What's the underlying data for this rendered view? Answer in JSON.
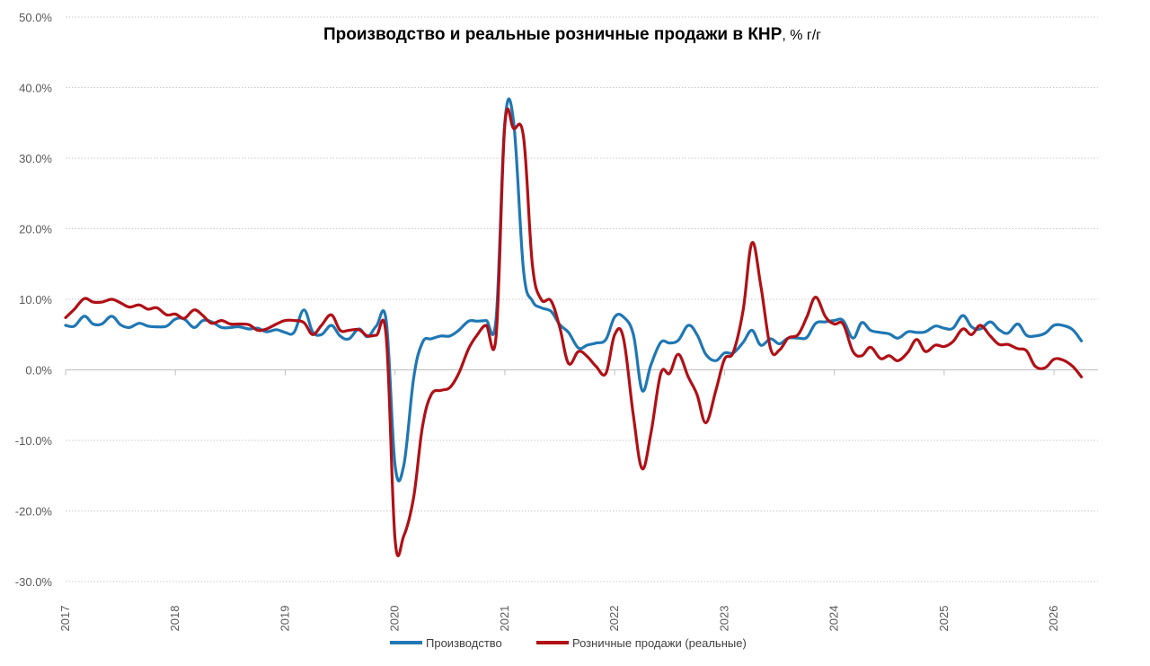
{
  "chart_data": {
    "type": "line",
    "title": "Производство и реальные розничные продажи в КНР",
    "title_unit": ", % г/г",
    "xlabel": "",
    "ylabel": "",
    "ylim": [
      -30,
      50
    ],
    "xlim": [
      2017.0,
      2026.4
    ],
    "y_ticks": [
      50,
      40,
      30,
      20,
      10,
      0,
      -10,
      -20,
      -30
    ],
    "y_tick_labels": [
      "50.0%",
      "40.0%",
      "30.0%",
      "20.0%",
      "10.0%",
      "0.0%",
      "-10.0%",
      "-20.0%",
      "-30.0%"
    ],
    "x_ticks": [
      2017,
      2018,
      2019,
      2020,
      2021,
      2022,
      2023,
      2024,
      2025,
      2026
    ],
    "x_tick_labels": [
      "2017",
      "2018",
      "2019",
      "2020",
      "2021",
      "2022",
      "2023",
      "2024",
      "2025",
      "2026"
    ],
    "grid": "horizontal dotted",
    "legend_position": "bottom",
    "series": [
      {
        "name": "Производство",
        "color": "#1f77b4",
        "points": [
          [
            2017.0,
            6.3
          ],
          [
            2017.08,
            6.2
          ],
          [
            2017.17,
            7.6
          ],
          [
            2017.25,
            6.5
          ],
          [
            2017.33,
            6.5
          ],
          [
            2017.42,
            7.6
          ],
          [
            2017.5,
            6.4
          ],
          [
            2017.58,
            6.0
          ],
          [
            2017.67,
            6.6
          ],
          [
            2017.75,
            6.2
          ],
          [
            2017.83,
            6.1
          ],
          [
            2017.92,
            6.2
          ],
          [
            2018.0,
            7.2
          ],
          [
            2018.08,
            7.2
          ],
          [
            2018.17,
            6.0
          ],
          [
            2018.25,
            7.0
          ],
          [
            2018.33,
            6.8
          ],
          [
            2018.42,
            6.0
          ],
          [
            2018.5,
            6.0
          ],
          [
            2018.58,
            6.1
          ],
          [
            2018.67,
            5.8
          ],
          [
            2018.75,
            5.9
          ],
          [
            2018.83,
            5.4
          ],
          [
            2018.92,
            5.7
          ],
          [
            2019.0,
            5.3
          ],
          [
            2019.08,
            5.3
          ],
          [
            2019.17,
            8.5
          ],
          [
            2019.25,
            5.4
          ],
          [
            2019.33,
            5.0
          ],
          [
            2019.42,
            6.3
          ],
          [
            2019.5,
            4.8
          ],
          [
            2019.58,
            4.4
          ],
          [
            2019.67,
            5.8
          ],
          [
            2019.75,
            4.7
          ],
          [
            2019.83,
            6.2
          ],
          [
            2019.92,
            6.9
          ],
          [
            2020.0,
            -13.5
          ],
          [
            2020.08,
            -13.5
          ],
          [
            2020.17,
            -1.1
          ],
          [
            2020.25,
            3.9
          ],
          [
            2020.33,
            4.4
          ],
          [
            2020.42,
            4.8
          ],
          [
            2020.5,
            4.8
          ],
          [
            2020.58,
            5.6
          ],
          [
            2020.67,
            6.9
          ],
          [
            2020.75,
            6.9
          ],
          [
            2020.83,
            7.0
          ],
          [
            2020.92,
            7.3
          ],
          [
            2021.0,
            35.1
          ],
          [
            2021.08,
            35.1
          ],
          [
            2021.17,
            14.1
          ],
          [
            2021.25,
            9.8
          ],
          [
            2021.33,
            8.8
          ],
          [
            2021.42,
            8.3
          ],
          [
            2021.5,
            6.4
          ],
          [
            2021.58,
            5.3
          ],
          [
            2021.67,
            3.1
          ],
          [
            2021.75,
            3.5
          ],
          [
            2021.83,
            3.8
          ],
          [
            2021.92,
            4.3
          ],
          [
            2022.0,
            7.5
          ],
          [
            2022.08,
            7.5
          ],
          [
            2022.17,
            5.0
          ],
          [
            2022.25,
            -2.9
          ],
          [
            2022.33,
            0.7
          ],
          [
            2022.42,
            3.9
          ],
          [
            2022.5,
            3.8
          ],
          [
            2022.58,
            4.2
          ],
          [
            2022.67,
            6.3
          ],
          [
            2022.75,
            5.0
          ],
          [
            2022.83,
            2.2
          ],
          [
            2022.92,
            1.3
          ],
          [
            2023.0,
            2.4
          ],
          [
            2023.08,
            2.4
          ],
          [
            2023.17,
            3.9
          ],
          [
            2023.25,
            5.6
          ],
          [
            2023.33,
            3.5
          ],
          [
            2023.42,
            4.4
          ],
          [
            2023.5,
            3.7
          ],
          [
            2023.58,
            4.5
          ],
          [
            2023.67,
            4.5
          ],
          [
            2023.75,
            4.6
          ],
          [
            2023.83,
            6.6
          ],
          [
            2023.92,
            6.8
          ],
          [
            2024.0,
            7.0
          ],
          [
            2024.08,
            7.0
          ],
          [
            2024.17,
            4.5
          ],
          [
            2024.25,
            6.7
          ],
          [
            2024.33,
            5.6
          ],
          [
            2024.42,
            5.3
          ],
          [
            2024.5,
            5.1
          ],
          [
            2024.58,
            4.5
          ],
          [
            2024.67,
            5.4
          ],
          [
            2024.75,
            5.3
          ],
          [
            2024.83,
            5.4
          ],
          [
            2024.92,
            6.2
          ],
          [
            2025.0,
            5.9
          ],
          [
            2025.08,
            5.9
          ],
          [
            2025.17,
            7.7
          ],
          [
            2025.25,
            6.1
          ],
          [
            2025.33,
            5.8
          ],
          [
            2025.42,
            6.8
          ],
          [
            2025.5,
            5.7
          ],
          [
            2025.58,
            5.2
          ],
          [
            2025.67,
            6.5
          ],
          [
            2025.75,
            4.9
          ],
          [
            2025.83,
            4.8
          ],
          [
            2025.92,
            5.2
          ],
          [
            2026.0,
            6.3
          ],
          [
            2026.08,
            6.3
          ],
          [
            2026.17,
            5.7
          ],
          [
            2026.25,
            4.1
          ]
        ]
      },
      {
        "name": "Розничные продажи (реальные)",
        "color": "#b01016",
        "points": [
          [
            2017.0,
            7.4
          ],
          [
            2017.08,
            8.6
          ],
          [
            2017.17,
            10.1
          ],
          [
            2017.25,
            9.6
          ],
          [
            2017.33,
            9.6
          ],
          [
            2017.42,
            10.0
          ],
          [
            2017.5,
            9.5
          ],
          [
            2017.58,
            8.9
          ],
          [
            2017.67,
            9.2
          ],
          [
            2017.75,
            8.6
          ],
          [
            2017.83,
            8.8
          ],
          [
            2017.92,
            7.8
          ],
          [
            2018.0,
            7.9
          ],
          [
            2018.08,
            7.3
          ],
          [
            2018.17,
            8.5
          ],
          [
            2018.25,
            7.7
          ],
          [
            2018.33,
            6.6
          ],
          [
            2018.42,
            7.0
          ],
          [
            2018.5,
            6.5
          ],
          [
            2018.58,
            6.5
          ],
          [
            2018.67,
            6.4
          ],
          [
            2018.75,
            5.6
          ],
          [
            2018.83,
            5.8
          ],
          [
            2018.92,
            6.5
          ],
          [
            2019.0,
            7.0
          ],
          [
            2019.08,
            7.0
          ],
          [
            2019.17,
            6.7
          ],
          [
            2019.25,
            5.0
          ],
          [
            2019.33,
            6.3
          ],
          [
            2019.42,
            7.8
          ],
          [
            2019.5,
            5.6
          ],
          [
            2019.58,
            5.6
          ],
          [
            2019.67,
            5.7
          ],
          [
            2019.75,
            4.8
          ],
          [
            2019.83,
            4.9
          ],
          [
            2019.92,
            4.7
          ],
          [
            2020.0,
            -24.0
          ],
          [
            2020.08,
            -23.5
          ],
          [
            2020.17,
            -18.0
          ],
          [
            2020.25,
            -8.0
          ],
          [
            2020.33,
            -3.5
          ],
          [
            2020.42,
            -2.9
          ],
          [
            2020.5,
            -2.5
          ],
          [
            2020.58,
            -0.5
          ],
          [
            2020.67,
            3.0
          ],
          [
            2020.75,
            5.0
          ],
          [
            2020.83,
            6.3
          ],
          [
            2020.92,
            4.8
          ],
          [
            2021.0,
            34.7
          ],
          [
            2021.08,
            34.2
          ],
          [
            2021.17,
            33.0
          ],
          [
            2021.25,
            15.0
          ],
          [
            2021.33,
            10.0
          ],
          [
            2021.42,
            9.8
          ],
          [
            2021.5,
            6.0
          ],
          [
            2021.58,
            0.9
          ],
          [
            2021.67,
            2.6
          ],
          [
            2021.75,
            1.9
          ],
          [
            2021.83,
            0.5
          ],
          [
            2021.92,
            -0.5
          ],
          [
            2022.0,
            5.0
          ],
          [
            2022.08,
            4.5
          ],
          [
            2022.17,
            -6.5
          ],
          [
            2022.25,
            -14.0
          ],
          [
            2022.33,
            -9.0
          ],
          [
            2022.42,
            -0.5
          ],
          [
            2022.5,
            -0.5
          ],
          [
            2022.58,
            2.2
          ],
          [
            2022.67,
            -1.0
          ],
          [
            2022.75,
            -3.5
          ],
          [
            2022.83,
            -7.5
          ],
          [
            2022.92,
            -3.0
          ],
          [
            2023.0,
            1.5
          ],
          [
            2023.08,
            2.5
          ],
          [
            2023.17,
            8.5
          ],
          [
            2023.25,
            18.0
          ],
          [
            2023.33,
            12.0
          ],
          [
            2023.42,
            3.0
          ],
          [
            2023.5,
            2.8
          ],
          [
            2023.58,
            4.5
          ],
          [
            2023.67,
            5.0
          ],
          [
            2023.75,
            7.5
          ],
          [
            2023.83,
            10.3
          ],
          [
            2023.92,
            7.5
          ],
          [
            2024.0,
            6.5
          ],
          [
            2024.08,
            6.5
          ],
          [
            2024.17,
            2.6
          ],
          [
            2024.25,
            2.0
          ],
          [
            2024.33,
            3.2
          ],
          [
            2024.42,
            1.6
          ],
          [
            2024.5,
            2.0
          ],
          [
            2024.58,
            1.3
          ],
          [
            2024.67,
            2.5
          ],
          [
            2024.75,
            4.3
          ],
          [
            2024.83,
            2.6
          ],
          [
            2024.92,
            3.5
          ],
          [
            2025.0,
            3.3
          ],
          [
            2025.08,
            4.0
          ],
          [
            2025.17,
            5.8
          ],
          [
            2025.25,
            5.0
          ],
          [
            2025.33,
            6.3
          ],
          [
            2025.42,
            4.8
          ],
          [
            2025.5,
            3.6
          ],
          [
            2025.58,
            3.6
          ],
          [
            2025.67,
            3.0
          ],
          [
            2025.75,
            2.7
          ],
          [
            2025.83,
            0.5
          ],
          [
            2025.92,
            0.3
          ],
          [
            2026.0,
            1.5
          ],
          [
            2026.08,
            1.4
          ],
          [
            2026.17,
            0.5
          ],
          [
            2026.25,
            -1.0
          ]
        ]
      }
    ]
  }
}
